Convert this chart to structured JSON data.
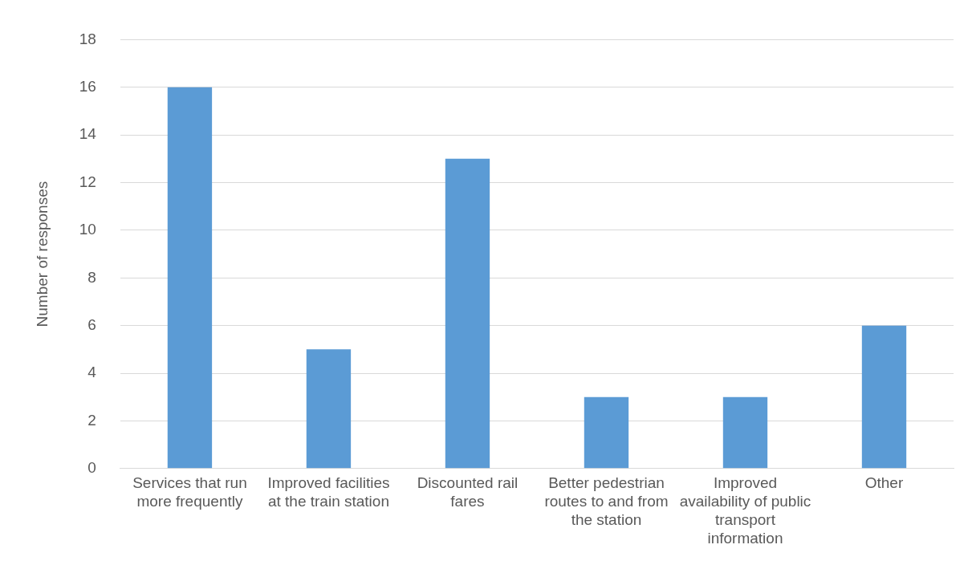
{
  "chart_data": {
    "type": "bar",
    "ylabel": "Number of responses",
    "categories": [
      "Services that run more frequently",
      "Improved facilities at the train station",
      "Discounted rail fares",
      "Better pedestrian routes to and from the station",
      "Improved availability of public transport information",
      "Other"
    ],
    "values": [
      16,
      5,
      13,
      3,
      3,
      6
    ],
    "color": "#5b9bd5",
    "ylim": [
      0,
      18
    ],
    "yticks": [
      0,
      2,
      4,
      6,
      8,
      10,
      12,
      14,
      16,
      18
    ],
    "grid": "y",
    "legend": false
  }
}
